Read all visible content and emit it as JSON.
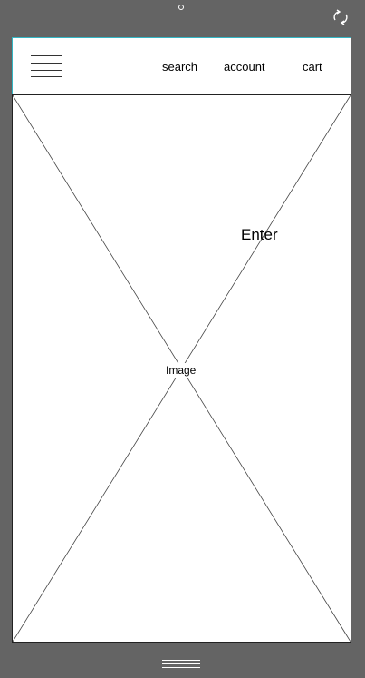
{
  "header": {
    "nav": {
      "search": "search",
      "account": "account",
      "cart": "cart"
    }
  },
  "content": {
    "image_label": "Image",
    "enter_label": "Enter"
  },
  "icons": {
    "menu": "hamburger-menu-icon",
    "rotate": "rotate-icon",
    "camera": "camera-dot-icon",
    "handle": "bottom-handle-icon"
  },
  "colors": {
    "background": "#646464",
    "header_border": "#33b6c4",
    "panel": "#ffffff"
  }
}
